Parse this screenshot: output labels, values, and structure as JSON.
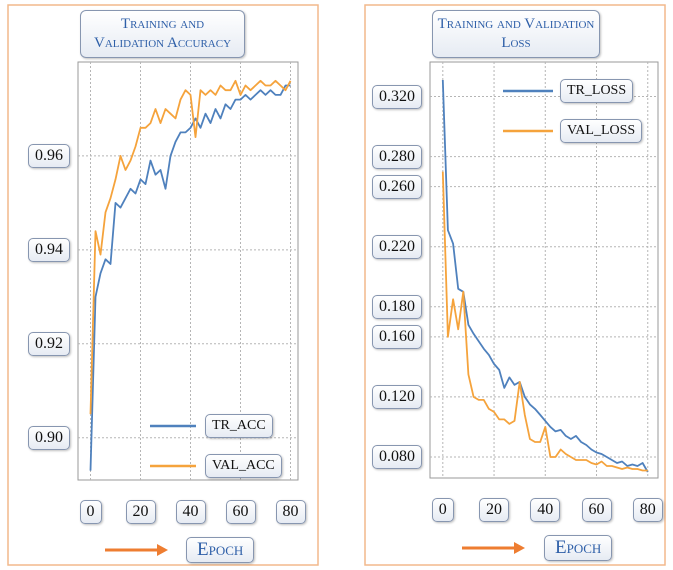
{
  "chart_data": [
    {
      "type": "line",
      "title": "Training and Validation Accuracy",
      "xlabel": "Epoch",
      "x": [
        0,
        2,
        4,
        6,
        8,
        10,
        12,
        14,
        16,
        18,
        20,
        22,
        24,
        26,
        28,
        30,
        32,
        34,
        36,
        38,
        40,
        42,
        44,
        46,
        48,
        50,
        52,
        54,
        56,
        58,
        60,
        62,
        64,
        66,
        68,
        70,
        72,
        74,
        76,
        78,
        80
      ],
      "series": [
        {
          "name": "TR_ACC",
          "color": "#4f81bd",
          "values": [
            0.893,
            0.93,
            0.935,
            0.938,
            0.937,
            0.95,
            0.949,
            0.951,
            0.953,
            0.952,
            0.955,
            0.954,
            0.959,
            0.956,
            0.957,
            0.953,
            0.96,
            0.963,
            0.965,
            0.965,
            0.966,
            0.968,
            0.966,
            0.969,
            0.967,
            0.97,
            0.968,
            0.971,
            0.97,
            0.972,
            0.972,
            0.973,
            0.972,
            0.973,
            0.974,
            0.973,
            0.974,
            0.973,
            0.973,
            0.975,
            0.975
          ]
        },
        {
          "name": "VAL_ACC",
          "color": "#f5a33c",
          "values": [
            0.905,
            0.944,
            0.939,
            0.948,
            0.951,
            0.955,
            0.96,
            0.957,
            0.959,
            0.962,
            0.966,
            0.966,
            0.967,
            0.97,
            0.967,
            0.97,
            0.969,
            0.968,
            0.972,
            0.974,
            0.973,
            0.964,
            0.974,
            0.973,
            0.974,
            0.973,
            0.975,
            0.974,
            0.974,
            0.976,
            0.973,
            0.975,
            0.974,
            0.975,
            0.976,
            0.975,
            0.975,
            0.976,
            0.975,
            0.974,
            0.976
          ]
        }
      ],
      "xlim": [
        -5,
        83
      ],
      "xticks": [
        0,
        20,
        40,
        60,
        80
      ],
      "ylim": [
        0.891,
        0.98
      ],
      "yticks": [
        {
          "value": 0.9,
          "label": "0.90"
        },
        0.92,
        0.94,
        0.96
      ],
      "grid": true,
      "legend": "lower right"
    },
    {
      "type": "line",
      "title": "Training and Validation Loss",
      "xlabel": "Epoch",
      "x": [
        0,
        2,
        4,
        6,
        8,
        10,
        12,
        14,
        16,
        18,
        20,
        22,
        24,
        26,
        28,
        30,
        32,
        34,
        36,
        38,
        40,
        42,
        44,
        46,
        48,
        50,
        52,
        54,
        56,
        58,
        60,
        62,
        64,
        66,
        68,
        70,
        72,
        74,
        76,
        78,
        80
      ],
      "series": [
        {
          "name": "TR_LOSS",
          "color": "#4f81bd",
          "values": [
            0.331,
            0.231,
            0.222,
            0.192,
            0.19,
            0.168,
            0.162,
            0.157,
            0.152,
            0.148,
            0.142,
            0.138,
            0.126,
            0.133,
            0.128,
            0.13,
            0.12,
            0.115,
            0.112,
            0.108,
            0.104,
            0.1,
            0.097,
            0.098,
            0.094,
            0.092,
            0.094,
            0.09,
            0.088,
            0.085,
            0.083,
            0.082,
            0.08,
            0.078,
            0.076,
            0.077,
            0.074,
            0.075,
            0.074,
            0.076,
            0.07
          ]
        },
        {
          "name": "VAL_LOSS",
          "color": "#f5a33c",
          "values": [
            0.27,
            0.16,
            0.185,
            0.165,
            0.19,
            0.135,
            0.12,
            0.118,
            0.118,
            0.112,
            0.11,
            0.105,
            0.105,
            0.102,
            0.104,
            0.13,
            0.108,
            0.092,
            0.09,
            0.09,
            0.1,
            0.08,
            0.08,
            0.085,
            0.082,
            0.08,
            0.078,
            0.078,
            0.078,
            0.076,
            0.075,
            0.077,
            0.074,
            0.074,
            0.073,
            0.072,
            0.073,
            0.072,
            0.072,
            0.071,
            0.071
          ]
        }
      ],
      "xlim": [
        -5,
        84
      ],
      "xticks": [
        0,
        20,
        40,
        60,
        80
      ],
      "ylim": [
        0.066,
        0.343
      ],
      "yticks": [
        {
          "value": 0.08,
          "label": "0.080"
        },
        {
          "value": 0.12,
          "label": "0.120"
        },
        {
          "value": 0.16,
          "label": "0.160"
        },
        {
          "value": 0.18,
          "label": "0.180"
        },
        {
          "value": 0.22,
          "label": "0.220"
        },
        {
          "value": 0.26,
          "label": "0.260"
        },
        {
          "value": 0.28,
          "label": "0.280"
        },
        {
          "value": 0.32,
          "label": "0.320"
        }
      ],
      "grid": true,
      "legend": "upper right"
    }
  ]
}
